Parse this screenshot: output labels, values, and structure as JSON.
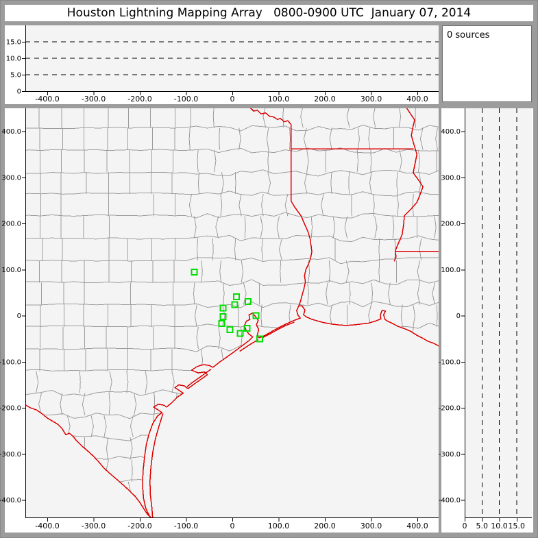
{
  "title_bar": {
    "text": "Houston Lightning Mapping Array   0800-0900 UTC  January 07, 2014"
  },
  "sources_panel": {
    "text": "0 sources"
  },
  "colors": {
    "frame": "#9c9c9c",
    "panel": "#ffffff",
    "plot_bg": "#f4f4f4",
    "axis": "#000000",
    "county_line": "#9d9d9d",
    "state_border": "#dd0000",
    "station": "#00dd00"
  },
  "chart_data": [
    {
      "id": "altitude_vs_eastwest",
      "type": "line",
      "title": "",
      "xlabel": "",
      "ylabel": "",
      "x_range_km": [
        -447,
        446
      ],
      "y_range_km": [
        0,
        20
      ],
      "xticks": {
        "values": [
          -400,
          -300,
          -200,
          -100,
          0,
          100,
          200,
          300,
          400
        ],
        "labels": [
          "-400.0",
          "-300.0",
          "-200.0",
          "-100.0",
          "0",
          "100.0",
          "200.0",
          "300.0",
          "400.0"
        ]
      },
      "yticks": {
        "values": [
          0,
          5,
          10,
          15
        ],
        "labels": [
          "0",
          "5.0",
          "10.0",
          "15.0"
        ]
      },
      "dashed_gridlines_km": [
        5,
        10,
        15
      ],
      "grid": true,
      "legend": "none",
      "series": []
    },
    {
      "id": "plan_view_map",
      "type": "scatter",
      "title": "",
      "xlabel": "",
      "ylabel": "",
      "x_range_km": [
        -447,
        446
      ],
      "y_range_km": [
        -438,
        450
      ],
      "xticks": {
        "values": [
          -400,
          -300,
          -200,
          -100,
          0,
          100,
          200,
          300,
          400
        ],
        "labels": [
          "-400.0",
          "-300.0",
          "-200.0",
          "-100.0",
          "0",
          "100.0",
          "200.0",
          "300.0",
          "400.0"
        ]
      },
      "yticks": {
        "values": [
          400,
          300,
          200,
          100,
          0,
          -100,
          -200,
          -300,
          -400
        ],
        "labels": [
          "400.0",
          "300.0",
          "200.0",
          "100.0",
          "0",
          "-100.0",
          "-200.0",
          "-300.0",
          "-400.0"
        ]
      },
      "grid": false,
      "legend": "none",
      "stations_km": [
        [
          -82,
          95
        ],
        [
          9,
          41
        ],
        [
          34,
          31
        ],
        [
          5,
          24
        ],
        [
          -20,
          17
        ],
        [
          -20,
          -2
        ],
        [
          51,
          0
        ],
        [
          -23,
          -17
        ],
        [
          32,
          -27
        ],
        [
          -5,
          -30
        ],
        [
          17,
          -38
        ],
        [
          59,
          -50
        ]
      ],
      "source_points": []
    },
    {
      "id": "altitude_vs_northsouth",
      "type": "line",
      "title": "",
      "xlabel": "",
      "ylabel": "",
      "x_range_km": [
        0,
        19.4
      ],
      "y_range_km": [
        -438,
        450
      ],
      "xticks": {
        "values": [
          0,
          5,
          10,
          15
        ],
        "labels": [
          "0",
          "5.0",
          "10.0",
          "15.0"
        ]
      },
      "yticks": {
        "values": [
          400,
          300,
          200,
          100,
          0,
          -100,
          -200,
          -300,
          -400
        ],
        "labels": [
          "400.0",
          "300.0",
          "200.0",
          "100.0",
          "0",
          "-100.0",
          "-200.0",
          "-300.0",
          "-400.0"
        ]
      },
      "dashed_gridlines_km": [
        5,
        10,
        15
      ],
      "grid": true,
      "legend": "none",
      "series": []
    }
  ],
  "map_geometry": {
    "state_borders": {
      "red_river": [
        [
          38,
          452
        ],
        [
          46,
          444
        ],
        [
          54,
          446
        ],
        [
          62,
          438
        ],
        [
          72,
          440
        ],
        [
          80,
          433
        ],
        [
          90,
          431
        ],
        [
          97,
          426
        ],
        [
          104,
          428
        ],
        [
          112,
          421
        ],
        [
          120,
          423
        ],
        [
          127,
          415
        ]
      ],
      "texas_arkansas": [
        [
          127,
          415
        ],
        [
          127,
          249
        ]
      ],
      "arkansas_louisiana": [
        [
          127,
          362
        ],
        [
          392,
          362
        ]
      ],
      "louisiana_mississippi": [
        [
          352,
          140
        ],
        [
          450,
          140
        ]
      ],
      "sabine_river": [
        [
          127,
          249
        ],
        [
          134,
          237
        ],
        [
          141,
          227
        ],
        [
          149,
          216
        ],
        [
          154,
          204
        ],
        [
          159,
          193
        ],
        [
          164,
          181
        ],
        [
          168,
          167
        ],
        [
          170,
          153
        ],
        [
          172,
          139
        ],
        [
          169,
          125
        ],
        [
          165,
          113
        ],
        [
          159,
          100
        ],
        [
          156,
          87
        ],
        [
          158,
          74
        ],
        [
          155,
          59
        ],
        [
          151,
          45
        ],
        [
          147,
          30
        ],
        [
          144,
          22
        ]
      ],
      "mississippi_river": [
        [
          376,
          452
        ],
        [
          385,
          438
        ],
        [
          394,
          425
        ],
        [
          390,
          408
        ],
        [
          387,
          391
        ],
        [
          393,
          370
        ],
        [
          399,
          350
        ],
        [
          395,
          330
        ],
        [
          391,
          310
        ],
        [
          402,
          295
        ],
        [
          412,
          280
        ],
        [
          406,
          263
        ],
        [
          399,
          246
        ],
        [
          385,
          230
        ],
        [
          372,
          217
        ],
        [
          370,
          196
        ],
        [
          367,
          176
        ],
        [
          362,
          164
        ],
        [
          357,
          153
        ],
        [
          352,
          140
        ],
        [
          354,
          128
        ],
        [
          350,
          118
        ]
      ],
      "rio_grande": [
        [
          -450,
          -192
        ],
        [
          -436,
          -200
        ],
        [
          -424,
          -204
        ],
        [
          -412,
          -212
        ],
        [
          -400,
          -222
        ],
        [
          -390,
          -228
        ],
        [
          -378,
          -235
        ],
        [
          -368,
          -245
        ],
        [
          -360,
          -258
        ],
        [
          -352,
          -255
        ],
        [
          -344,
          -262
        ],
        [
          -336,
          -272
        ],
        [
          -326,
          -282
        ],
        [
          -314,
          -292
        ],
        [
          -300,
          -305
        ],
        [
          -288,
          -318
        ],
        [
          -278,
          -330
        ],
        [
          -265,
          -342
        ],
        [
          -250,
          -355
        ],
        [
          -235,
          -368
        ],
        [
          -222,
          -380
        ],
        [
          -210,
          -392
        ],
        [
          -200,
          -405
        ],
        [
          -192,
          -418
        ],
        [
          -184,
          -430
        ],
        [
          -172,
          -443
        ]
      ]
    },
    "coastline": [
      [
        450,
        -68
      ],
      [
        436,
        -60
      ],
      [
        422,
        -55
      ],
      [
        410,
        -48
      ],
      [
        398,
        -42
      ],
      [
        386,
        -34
      ],
      [
        372,
        -28
      ],
      [
        358,
        -23
      ],
      [
        345,
        -16
      ],
      [
        336,
        -12
      ],
      [
        330,
        -8
      ],
      [
        327,
        2
      ],
      [
        331,
        10
      ],
      [
        324,
        12
      ],
      [
        320,
        2
      ],
      [
        321,
        -7
      ],
      [
        308,
        -12
      ],
      [
        294,
        -16
      ],
      [
        278,
        -18
      ],
      [
        262,
        -20
      ],
      [
        246,
        -21
      ],
      [
        230,
        -20
      ],
      [
        214,
        -18
      ],
      [
        198,
        -15
      ],
      [
        183,
        -11
      ],
      [
        170,
        -7
      ],
      [
        161,
        -3
      ],
      [
        154,
        2
      ],
      [
        157,
        12
      ],
      [
        151,
        21
      ],
      [
        144,
        22
      ],
      [
        139,
        11
      ],
      [
        142,
        1
      ],
      [
        147,
        -5
      ],
      [
        134,
        -10
      ],
      [
        118,
        -17
      ],
      [
        100,
        -26
      ],
      [
        84,
        -35
      ],
      [
        70,
        -43
      ],
      [
        58,
        -48
      ],
      [
        54,
        -42
      ],
      [
        57,
        -30
      ],
      [
        52,
        -20
      ],
      [
        56,
        -10
      ],
      [
        50,
        -2
      ],
      [
        44,
        6
      ],
      [
        36,
        2
      ],
      [
        38,
        -8
      ],
      [
        30,
        -12
      ],
      [
        26,
        -22
      ],
      [
        30,
        -32
      ],
      [
        36,
        -40
      ],
      [
        44,
        -46
      ],
      [
        36,
        -54
      ],
      [
        24,
        -63
      ],
      [
        12,
        -72
      ],
      [
        0,
        -81
      ],
      [
        -14,
        -91
      ],
      [
        -28,
        -101
      ],
      [
        -42,
        -112
      ],
      [
        -50,
        -108
      ],
      [
        -62,
        -106
      ],
      [
        -76,
        -110
      ],
      [
        -88,
        -118
      ],
      [
        -74,
        -124
      ],
      [
        -60,
        -122
      ],
      [
        -54,
        -128
      ],
      [
        -68,
        -138
      ],
      [
        -82,
        -148
      ],
      [
        -96,
        -158
      ],
      [
        -104,
        -152
      ],
      [
        -116,
        -150
      ],
      [
        -124,
        -156
      ],
      [
        -112,
        -164
      ],
      [
        -106,
        -168
      ],
      [
        -118,
        -176
      ],
      [
        -130,
        -188
      ],
      [
        -142,
        -198
      ],
      [
        -148,
        -194
      ],
      [
        -160,
        -192
      ],
      [
        -170,
        -198
      ],
      [
        -158,
        -206
      ],
      [
        -152,
        -210
      ],
      [
        -162,
        -218
      ],
      [
        -172,
        -234
      ],
      [
        -180,
        -256
      ],
      [
        -186,
        -280
      ],
      [
        -190,
        -308
      ],
      [
        -193,
        -338
      ],
      [
        -194,
        -368
      ],
      [
        -192,
        -396
      ],
      [
        -187,
        -418
      ],
      [
        -180,
        -433
      ],
      [
        -172,
        -443
      ]
    ],
    "barrier_islands": {
      "padre_island": [
        [
          -150,
          -212
        ],
        [
          -158,
          -238
        ],
        [
          -166,
          -266
        ],
        [
          -172,
          -296
        ],
        [
          -176,
          -328
        ],
        [
          -178,
          -360
        ],
        [
          -177,
          -390
        ],
        [
          -174,
          -416
        ],
        [
          -172,
          -443
        ]
      ],
      "galveston_island": [
        [
          56,
          -52
        ],
        [
          42,
          -60
        ],
        [
          28,
          -69
        ],
        [
          16,
          -77
        ]
      ],
      "bolivar_peninsula": [
        [
          134,
          -14
        ],
        [
          116,
          -21
        ],
        [
          98,
          -30
        ],
        [
          82,
          -39
        ],
        [
          66,
          -47
        ]
      ],
      "matagorda_peninsula": [
        [
          -46,
          -116
        ],
        [
          -60,
          -126
        ],
        [
          -74,
          -136
        ],
        [
          -88,
          -146
        ],
        [
          -98,
          -154
        ]
      ]
    }
  }
}
